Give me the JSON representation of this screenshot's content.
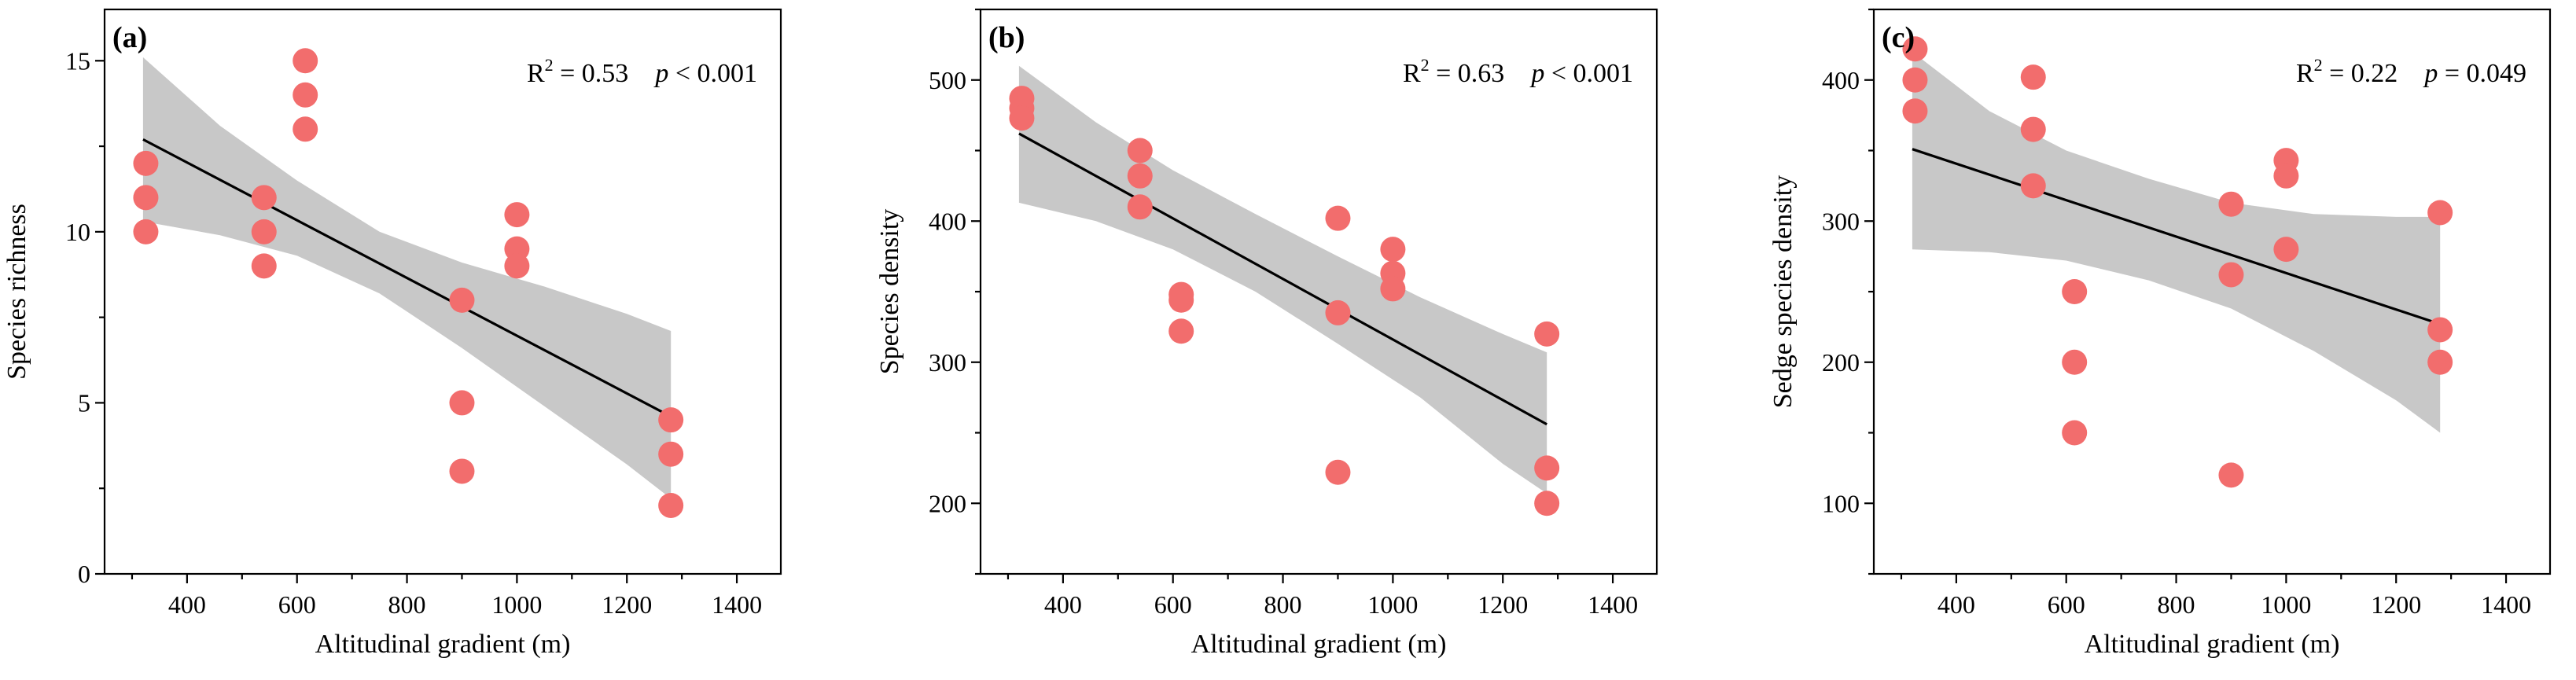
{
  "figure_name": "altitudinal-gradient-panels",
  "chart_data": [
    {
      "type": "scatter",
      "panel_label": "(a)",
      "xlabel": "Altitudinal gradient (m)",
      "ylabel": "Species richness",
      "xlim": [
        250,
        1480
      ],
      "ylim": [
        0,
        16.5
      ],
      "xticks": [
        400,
        600,
        800,
        1000,
        1200,
        1400
      ],
      "yticks": [
        0,
        5,
        10,
        15
      ],
      "stats": {
        "r2_label": "R",
        "r2_sup": "2",
        "r2_value": " = 0.53",
        "p_label": "p",
        "p_value": " < 0.001"
      },
      "points": [
        {
          "x": 325,
          "y": 12
        },
        {
          "x": 325,
          "y": 11
        },
        {
          "x": 325,
          "y": 10
        },
        {
          "x": 540,
          "y": 11
        },
        {
          "x": 540,
          "y": 10
        },
        {
          "x": 540,
          "y": 9
        },
        {
          "x": 615,
          "y": 15
        },
        {
          "x": 615,
          "y": 14
        },
        {
          "x": 615,
          "y": 13
        },
        {
          "x": 900,
          "y": 8
        },
        {
          "x": 900,
          "y": 5
        },
        {
          "x": 900,
          "y": 3
        },
        {
          "x": 1000,
          "y": 10.5
        },
        {
          "x": 1000,
          "y": 9.5
        },
        {
          "x": 1000,
          "y": 9
        },
        {
          "x": 1280,
          "y": 4.5
        },
        {
          "x": 1280,
          "y": 3.5
        },
        {
          "x": 1280,
          "y": 2
        }
      ],
      "fit": {
        "x": [
          320,
          1280
        ],
        "y": [
          12.7,
          4.6
        ]
      },
      "ci": {
        "x": [
          320,
          460,
          600,
          750,
          900,
          1050,
          1200,
          1280
        ],
        "upper": [
          15.1,
          13.1,
          11.5,
          10.0,
          9.1,
          8.4,
          7.6,
          7.1
        ],
        "lower": [
          10.3,
          9.9,
          9.3,
          8.2,
          6.6,
          4.9,
          3.2,
          2.2
        ]
      }
    },
    {
      "type": "scatter",
      "panel_label": "(b)",
      "xlabel": "Altitudinal gradient (m)",
      "ylabel": "Species density",
      "xlim": [
        250,
        1480
      ],
      "ylim": [
        150,
        550
      ],
      "xticks": [
        400,
        600,
        800,
        1000,
        1200,
        1400
      ],
      "yticks": [
        200,
        300,
        400,
        500
      ],
      "stats": {
        "r2_label": "R",
        "r2_sup": "2",
        "r2_value": " = 0.63",
        "p_label": "p",
        "p_value": " < 0.001"
      },
      "points": [
        {
          "x": 325,
          "y": 487
        },
        {
          "x": 325,
          "y": 480
        },
        {
          "x": 325,
          "y": 473
        },
        {
          "x": 540,
          "y": 450
        },
        {
          "x": 540,
          "y": 432
        },
        {
          "x": 540,
          "y": 410
        },
        {
          "x": 615,
          "y": 348
        },
        {
          "x": 615,
          "y": 344
        },
        {
          "x": 615,
          "y": 322
        },
        {
          "x": 900,
          "y": 402
        },
        {
          "x": 900,
          "y": 335
        },
        {
          "x": 900,
          "y": 222
        },
        {
          "x": 1000,
          "y": 380
        },
        {
          "x": 1000,
          "y": 363
        },
        {
          "x": 1000,
          "y": 352
        },
        {
          "x": 1280,
          "y": 320
        },
        {
          "x": 1280,
          "y": 225
        },
        {
          "x": 1280,
          "y": 200
        }
      ],
      "fit": {
        "x": [
          320,
          1280
        ],
        "y": [
          462,
          256
        ]
      },
      "ci": {
        "x": [
          320,
          460,
          600,
          750,
          900,
          1050,
          1200,
          1280
        ],
        "upper": [
          510,
          470,
          436,
          405,
          375,
          346,
          320,
          307
        ],
        "lower": [
          413,
          400,
          380,
          350,
          313,
          275,
          228,
          207
        ]
      }
    },
    {
      "type": "scatter",
      "panel_label": "(c)",
      "xlabel": "Altitudinal gradient (m)",
      "ylabel": "Sedge species density",
      "xlim": [
        250,
        1480
      ],
      "ylim": [
        50,
        450
      ],
      "xticks": [
        400,
        600,
        800,
        1000,
        1200,
        1400
      ],
      "yticks": [
        100,
        200,
        300,
        400
      ],
      "stats": {
        "r2_label": "R",
        "r2_sup": "2",
        "r2_value": " = 0.22",
        "p_label": "p",
        "p_value": " = 0.049"
      },
      "points": [
        {
          "x": 325,
          "y": 422
        },
        {
          "x": 325,
          "y": 400
        },
        {
          "x": 325,
          "y": 378
        },
        {
          "x": 540,
          "y": 402
        },
        {
          "x": 540,
          "y": 365
        },
        {
          "x": 540,
          "y": 325
        },
        {
          "x": 615,
          "y": 250
        },
        {
          "x": 615,
          "y": 200
        },
        {
          "x": 615,
          "y": 150
        },
        {
          "x": 900,
          "y": 312
        },
        {
          "x": 900,
          "y": 262
        },
        {
          "x": 900,
          "y": 120
        },
        {
          "x": 1000,
          "y": 343
        },
        {
          "x": 1000,
          "y": 332
        },
        {
          "x": 1000,
          "y": 280
        },
        {
          "x": 1280,
          "y": 306
        },
        {
          "x": 1280,
          "y": 223
        },
        {
          "x": 1280,
          "y": 200
        }
      ],
      "fit": {
        "x": [
          320,
          1280
        ],
        "y": [
          351,
          227
        ]
      },
      "ci": {
        "x": [
          320,
          460,
          600,
          750,
          900,
          1050,
          1200,
          1280
        ],
        "upper": [
          420,
          378,
          350,
          330,
          313,
          305,
          303,
          303
        ],
        "lower": [
          280,
          278,
          272,
          258,
          238,
          208,
          173,
          150
        ]
      }
    }
  ]
}
